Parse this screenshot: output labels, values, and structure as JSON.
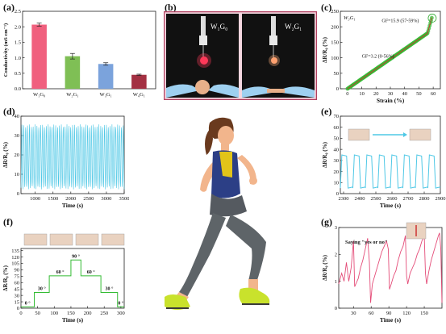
{
  "panels": {
    "a": "(a)",
    "b": "(b)",
    "c": "(c)",
    "d": "(d)",
    "e": "(e)",
    "f": "(f)",
    "g": "(g)"
  },
  "photo_b": {
    "left_label": "W₁G₀",
    "right_label": "W₂G₁"
  },
  "chart_data": [
    {
      "id": "a",
      "type": "bar",
      "categories": [
        "W₁G₀",
        "W₂G₁",
        "W₃G₁",
        "W₄G₁"
      ],
      "values": [
        2.07,
        1.05,
        0.8,
        0.45
      ],
      "errors": [
        0.05,
        0.09,
        0.04,
        0.02
      ],
      "colors": [
        "#f0607e",
        "#7fbf55",
        "#7ba3dc",
        "#a33042"
      ],
      "ylabel": "Conductivity (mS cm⁻¹)",
      "ylim": [
        0,
        2.5
      ],
      "yticks": [
        "0.0",
        "0.5",
        "1.0",
        "1.5",
        "2.0",
        "2.5"
      ]
    },
    {
      "id": "c",
      "type": "scatter",
      "xlabel": "Strain (%)",
      "ylabel": "ΔR/R₀ (%)",
      "xlim": [
        -5,
        65
      ],
      "ylim": [
        0,
        250
      ],
      "xticks": [
        "0",
        "10",
        "20",
        "30",
        "40",
        "50",
        "60"
      ],
      "yticks": [
        "0",
        "50",
        "100",
        "150",
        "200",
        "250"
      ],
      "legend": "W₃G₁",
      "annotations": [
        "GF=15.9 (57-59%)",
        "GF=3.2 (0-56%)"
      ],
      "x": [
        0,
        5,
        10,
        15,
        20,
        25,
        30,
        35,
        40,
        45,
        50,
        55,
        56,
        57,
        58,
        59
      ],
      "y": [
        0,
        16,
        32,
        48,
        64,
        80,
        96,
        112,
        128,
        144,
        160,
        178,
        185,
        200,
        215,
        230
      ]
    },
    {
      "id": "d",
      "type": "line",
      "xlabel": "Time (s)",
      "ylabel": "ΔR/R₀ (%)",
      "xlim": [
        600,
        3500
      ],
      "ylim": [
        0,
        40
      ],
      "xticks": [
        "1000",
        "1500",
        "2000",
        "2500",
        "3000",
        "3500"
      ],
      "yticks": [
        "0",
        "10",
        "20",
        "30",
        "40"
      ],
      "cycles": 55,
      "peak": 35,
      "valley": 3
    },
    {
      "id": "e",
      "type": "line",
      "xlabel": "Time (s)",
      "ylabel": "ΔR/R₀ (%)",
      "xlim": [
        2280,
        2900
      ],
      "ylim": [
        0,
        70
      ],
      "xticks": [
        "2300",
        "2400",
        "2500",
        "2600",
        "2700",
        "2800",
        "2900"
      ],
      "yticks": [
        "0",
        "10",
        "20",
        "30",
        "40",
        "50",
        "60",
        "70"
      ],
      "cycles": 8,
      "peak": 35,
      "valley": 5
    },
    {
      "id": "f",
      "type": "line",
      "xlabel": "Time (s)",
      "ylabel": "ΔR/R₀ (%)",
      "xlim": [
        0,
        310
      ],
      "ylim": [
        0,
        140
      ],
      "xticks": [
        "0",
        "50",
        "100",
        "150",
        "200",
        "250",
        "300"
      ],
      "yticks": [
        "0",
        "15",
        "30",
        "45",
        "60",
        "75",
        "90",
        "105",
        "120",
        "135"
      ],
      "steps": [
        {
          "t0": 0,
          "t1": 40,
          "v": 3,
          "label": "0 °"
        },
        {
          "t0": 40,
          "t1": 85,
          "v": 37,
          "label": "30 °"
        },
        {
          "t0": 85,
          "t1": 150,
          "v": 76,
          "label": "60 °"
        },
        {
          "t0": 150,
          "t1": 180,
          "v": 113,
          "label": "90 °"
        },
        {
          "t0": 180,
          "t1": 240,
          "v": 76,
          "label": "60 °"
        },
        {
          "t0": 240,
          "t1": 290,
          "v": 37,
          "label": "30 °"
        },
        {
          "t0": 290,
          "t1": 310,
          "v": 3,
          "label": "0 °"
        }
      ]
    },
    {
      "id": "g",
      "type": "line",
      "xlabel": "Time (s)",
      "ylabel": "ΔR/R₀ (%)",
      "xlim": [
        5,
        180
      ],
      "ylim": [
        0,
        3
      ],
      "xticks": [
        "30",
        "60",
        "90",
        "120",
        "150"
      ],
      "yticks": [
        "0",
        "1",
        "2",
        "3"
      ],
      "annotation": "Saying \"yes or no\"",
      "x": [
        5,
        10,
        14,
        18,
        22,
        26,
        30,
        32,
        34,
        38,
        42,
        46,
        50,
        54,
        57,
        59,
        62,
        66,
        70,
        74,
        78,
        82,
        86,
        89,
        91,
        94,
        98,
        102,
        106,
        110,
        114,
        118,
        120,
        122,
        126,
        130,
        134,
        138,
        142,
        146,
        150,
        152,
        154,
        158,
        162,
        166,
        170,
        174,
        176,
        178,
        180
      ],
      "y": [
        0.9,
        1.3,
        1.0,
        1.7,
        1.0,
        1.5,
        2.5,
        0.8,
        0.9,
        1.1,
        1.5,
        1.8,
        2.2,
        2.6,
        1.7,
        0.2,
        0.9,
        1.2,
        1.5,
        1.8,
        2.1,
        2.3,
        2.5,
        2.2,
        0.7,
        0.9,
        1.2,
        1.4,
        1.8,
        2.1,
        2.3,
        2.7,
        1.2,
        0.9,
        1.3,
        1.5,
        1.7,
        2.0,
        2.2,
        2.5,
        2.7,
        1.3,
        0.9,
        1.4,
        1.8,
        2.1,
        2.4,
        2.7,
        2.8,
        2.2,
        0.2
      ]
    }
  ],
  "colors": {
    "cyan": "#4fc8e6",
    "green": "#33bb33",
    "pink": "#e44c78",
    "frame_b": "#b04060"
  }
}
